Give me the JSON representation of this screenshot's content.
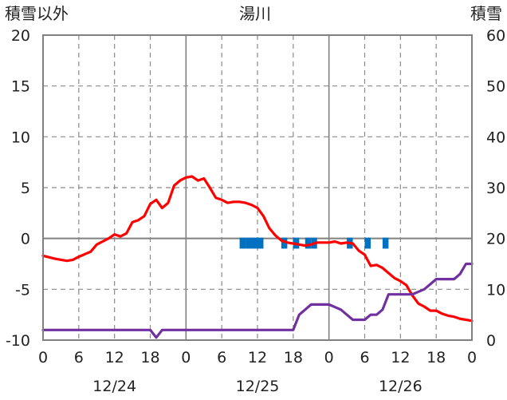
{
  "chart_data": {
    "type": "line",
    "title": "湯川",
    "left_axis_label": "積雪以外",
    "right_axis_label": "積雪",
    "ylim_left": [
      -10,
      20
    ],
    "ylim_right": [
      0,
      60
    ],
    "yticks_left": [
      "20",
      "15",
      "10",
      "5",
      "0",
      "-5",
      "-10"
    ],
    "yticks_right": [
      "60",
      "50",
      "40",
      "30",
      "20",
      "10",
      "0"
    ],
    "xticks": [
      "0",
      "6",
      "12",
      "18",
      "0",
      "6",
      "12",
      "18",
      "0",
      "6",
      "12",
      "18",
      "0"
    ],
    "date_labels": [
      "12/24",
      "12/25",
      "12/26"
    ],
    "x_unit": "hours from 12/24 00:00",
    "xlim": [
      0,
      72
    ],
    "grid": true,
    "series": [
      {
        "role": "temperature",
        "color": "#ff0000",
        "axis": "left",
        "x": [
          0,
          2,
          4,
          5,
          6,
          8,
          9,
          10,
          11,
          12,
          13,
          14,
          15,
          16,
          17,
          18,
          19,
          20,
          21,
          22,
          23,
          24,
          25,
          26,
          27,
          28,
          29,
          30,
          31,
          32,
          33,
          34,
          35,
          36,
          37,
          38,
          39,
          40,
          41,
          42,
          43,
          44,
          45,
          46,
          47,
          48,
          49,
          50,
          51,
          52,
          53,
          54,
          55,
          56,
          57,
          58,
          59,
          60,
          61,
          62,
          63,
          64,
          65,
          66,
          67,
          68,
          69,
          70,
          71,
          72
        ],
        "y": [
          -1.7,
          -2.0,
          -2.2,
          -2.1,
          -1.8,
          -1.3,
          -0.6,
          -0.3,
          0.0,
          0.4,
          0.2,
          0.5,
          1.6,
          1.8,
          2.2,
          3.4,
          3.8,
          3.0,
          3.5,
          5.2,
          5.7,
          6.0,
          6.1,
          5.7,
          5.9,
          5.0,
          4.0,
          3.8,
          3.5,
          3.6,
          3.6,
          3.5,
          3.3,
          3.0,
          2.2,
          1.0,
          0.3,
          -0.2,
          -0.4,
          -0.5,
          -0.6,
          -0.7,
          -0.6,
          -0.4,
          -0.4,
          -0.4,
          -0.3,
          -0.5,
          -0.4,
          -0.5,
          -1.2,
          -1.6,
          -2.7,
          -2.6,
          -2.9,
          -3.4,
          -3.9,
          -4.2,
          -4.6,
          -5.6,
          -6.4,
          -6.7,
          -7.1,
          -7.1,
          -7.4,
          -7.6,
          -7.7,
          -7.9,
          -8.0,
          -8.1
        ]
      },
      {
        "role": "snow_depth",
        "color": "#7030a0",
        "axis": "right",
        "x": [
          0,
          18,
          19,
          20,
          21,
          42,
          43,
          44,
          45,
          47,
          48,
          50,
          51,
          52,
          54,
          55,
          56,
          57,
          58,
          60,
          61,
          62,
          64,
          65,
          66,
          68,
          69,
          70,
          71,
          72
        ],
        "y": [
          2,
          2,
          0.5,
          2,
          2,
          2,
          5,
          6,
          7,
          7,
          7,
          6,
          5,
          4,
          4,
          5,
          5,
          6,
          9,
          9,
          9,
          9,
          10,
          11,
          12,
          12,
          12,
          13,
          15,
          15
        ]
      },
      {
        "role": "precipitation",
        "color": "#0070c0",
        "axis": "left",
        "kind": "bars",
        "x": [
          33,
          34,
          35,
          36,
          40,
          42,
          44,
          45,
          51,
          54,
          57
        ],
        "y": [
          1,
          1,
          1,
          1,
          1,
          1,
          1,
          1,
          1,
          1,
          1
        ]
      }
    ]
  }
}
